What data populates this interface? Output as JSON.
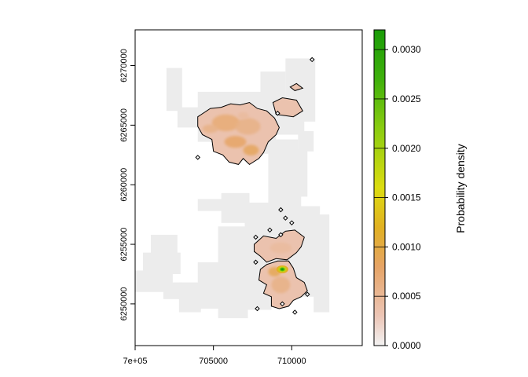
{
  "chart_data": {
    "type": "heatmap",
    "xlabel": "",
    "ylabel": "",
    "xlim": [
      700000,
      714500
    ],
    "ylim": [
      6246500,
      6273000
    ],
    "x_ticks": [
      {
        "value": 700000,
        "label": "7e+05"
      },
      {
        "value": 705000,
        "label": "705000"
      },
      {
        "value": 710000,
        "label": "710000"
      }
    ],
    "y_ticks": [
      {
        "value": 6250000,
        "label": "6250000"
      },
      {
        "value": 6255000,
        "label": "6255000"
      },
      {
        "value": 6260000,
        "label": "6260000"
      },
      {
        "value": 6265000,
        "label": "6265000"
      },
      {
        "value": 6270000,
        "label": "6270000"
      }
    ],
    "legend": {
      "title": "Probability density",
      "range": [
        0,
        0.0032
      ],
      "ticks": [
        {
          "value": 0.0,
          "label": "0.0000"
        },
        {
          "value": 0.0005,
          "label": "0.0005"
        },
        {
          "value": 0.001,
          "label": "0.0010"
        },
        {
          "value": 0.0015,
          "label": "0.0015"
        },
        {
          "value": 0.002,
          "label": "0.0020"
        },
        {
          "value": 0.0025,
          "label": "0.0025"
        },
        {
          "value": 0.003,
          "label": "0.0030"
        }
      ],
      "colors": [
        {
          "value": 0.0,
          "color": "#f2f2f2"
        },
        {
          "value": 0.0003,
          "color": "#ecc5b6"
        },
        {
          "value": 0.0008,
          "color": "#e6a466"
        },
        {
          "value": 0.0012,
          "color": "#e1b122"
        },
        {
          "value": 0.0016,
          "color": "#dcdc10"
        },
        {
          "value": 0.0022,
          "color": "#8acc10"
        },
        {
          "value": 0.0027,
          "color": "#3fb00c"
        },
        {
          "value": 0.0032,
          "color": "#1a9c08"
        }
      ]
    },
    "domain_color": "#ececec",
    "contour_color": "#000000",
    "hotspot": {
      "x": 709400,
      "y": 6252900,
      "density": 0.0032
    }
  }
}
